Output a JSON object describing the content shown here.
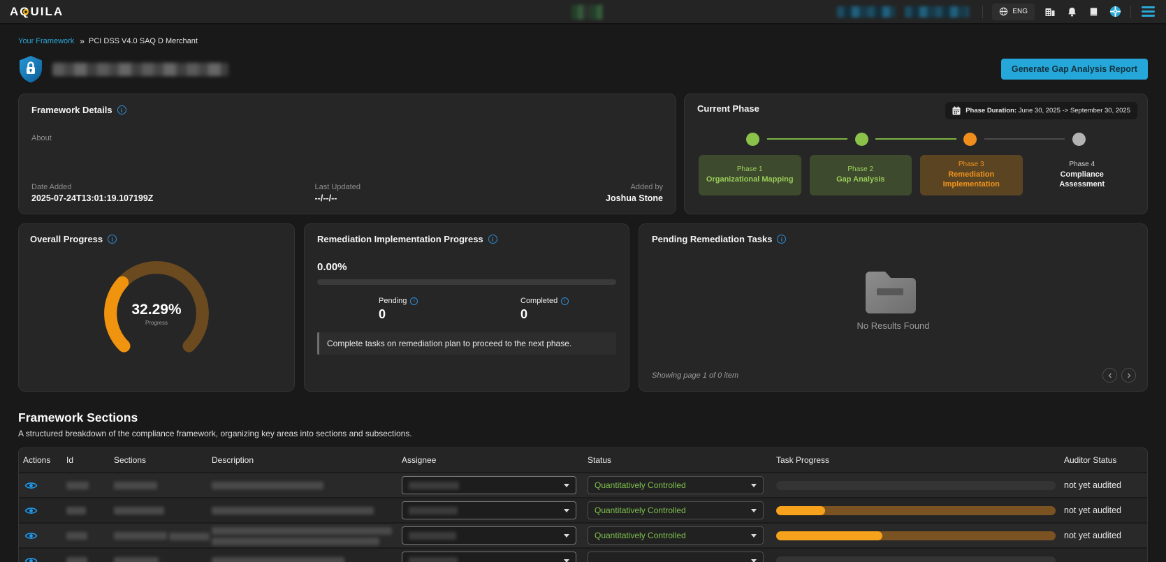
{
  "navbar": {
    "logo_prefix": "A",
    "logo_q": "Q",
    "logo_suffix": "UILA",
    "lang": "ENG",
    "icons": [
      "globe-icon",
      "organization-icon",
      "bell-icon",
      "book-icon",
      "support-globe-icon",
      "menu-icon"
    ]
  },
  "breadcrumb": {
    "parent": "Your Framework",
    "separator": "»",
    "current": "PCI DSS V4.0 SAQ D Merchant"
  },
  "header": {
    "icon": "shield-lock-icon",
    "generate_report_button": "Generate Gap Analysis Report"
  },
  "framework_details": {
    "title": "Framework Details",
    "about_label": "About",
    "date_added_label": "Date Added",
    "date_added": "2025-07-24T13:01:19.107199Z",
    "last_updated_label": "Last Updated",
    "last_updated": "--/--/--",
    "added_by_label": "Added by",
    "added_by": "Joshua Stone"
  },
  "current_phase": {
    "title": "Current Phase",
    "duration_label": "Phase Duration:",
    "duration_value": "June 30, 2025 -> September 30, 2025",
    "phases": [
      {
        "label": "Phase 1",
        "name": "Organizational Mapping",
        "state": "done"
      },
      {
        "label": "Phase 2",
        "name": "Gap Analysis",
        "state": "done"
      },
      {
        "label": "Phase 3",
        "name": "Remediation Implementation",
        "state": "active"
      },
      {
        "label": "Phase 4",
        "name": "Compliance Assessment",
        "state": "pending"
      }
    ]
  },
  "overall_progress": {
    "title": "Overall Progress",
    "value": "32.29%",
    "percent": 32.29,
    "caption": "Progress"
  },
  "remediation_progress": {
    "title": "Remediation Implementation Progress",
    "percent_label": "0.00%",
    "percent": 0,
    "pending_label": "Pending",
    "pending_value": "0",
    "completed_label": "Completed",
    "completed_value": "0",
    "note": "Complete tasks on remediation plan to proceed to the next phase."
  },
  "pending_tasks": {
    "title": "Pending Remediation Tasks",
    "empty_icon": "folder-icon",
    "empty_text": "No Results Found",
    "pagination": "Showing page 1 of 0 item"
  },
  "framework_sections": {
    "title": "Framework Sections",
    "subtitle": "A structured breakdown of the compliance framework, organizing key areas into sections and subsections.",
    "columns": [
      "Actions",
      "Id",
      "Sections",
      "Description",
      "Assignee",
      "Status",
      "Task Progress",
      "Auditor Status"
    ],
    "rows": [
      {
        "status": "Quantitatively Controlled",
        "progress": 0,
        "auditor_status": "not yet audited"
      },
      {
        "status": "Quantitatively Controlled",
        "progress": 17.5,
        "auditor_status": "not yet audited"
      },
      {
        "status": "Quantitatively Controlled",
        "progress": 38,
        "auditor_status": "not yet audited"
      }
    ]
  },
  "colors": {
    "accent_cyan": "#2ba7d6",
    "info_blue": "#2f8fd8",
    "phase_green": "#8bc34a",
    "phase_orange": "#ef8d1d",
    "gauge_orange": "#f0930f",
    "gauge_track": "#6b4a1f",
    "status_green": "#7ec14d",
    "bar_fill": "#f6a21c",
    "bar_track": "#7b5221"
  }
}
